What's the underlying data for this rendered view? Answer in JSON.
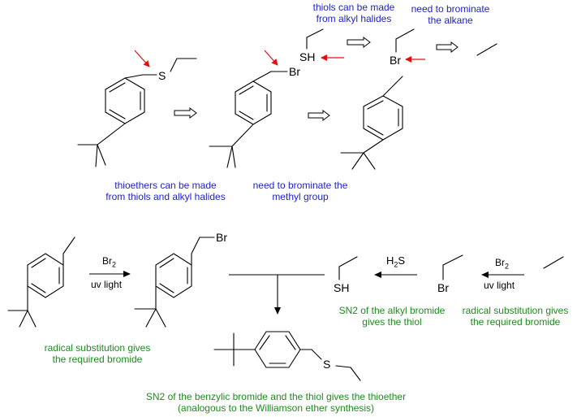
{
  "annotations": {
    "thiols_from_alkyl_halides": [
      "thiols can be made",
      "from alkyl halides"
    ],
    "brominate_alkane": [
      "need to brominate",
      "the alkane"
    ],
    "thioethers_from_thiols": [
      "thioethers can be made",
      "from thiols and alkyl halides"
    ],
    "brominate_methyl": [
      "need to brominate the",
      "methyl group"
    ],
    "radical_sub_left": [
      "radical substitution gives",
      "the required bromide"
    ],
    "sn2_alkyl": [
      "SN2 of the alkyl bromide",
      "gives the thiol"
    ],
    "radical_sub_right": [
      "radical substitution gives",
      "the required bromide"
    ],
    "sn2_benzylic": [
      "SN2 of the benzylic bromide and the thiol gives the thioether",
      "(analogous to the Williamson ether synthesis)"
    ]
  },
  "atoms": {
    "S": "S",
    "Br": "Br",
    "SH": "SH"
  },
  "reagents": {
    "br2": "Br",
    "br2_sub": "2",
    "uv": "uv light",
    "h2s_h": "H",
    "h2s_sub": "2",
    "h2s_s": "S"
  },
  "colors": {
    "annotation_blue": "#1f23c8",
    "annotation_green": "#1f8a1f",
    "disconnection_arrow_red": "#e01010",
    "bond_black": "#000000"
  }
}
